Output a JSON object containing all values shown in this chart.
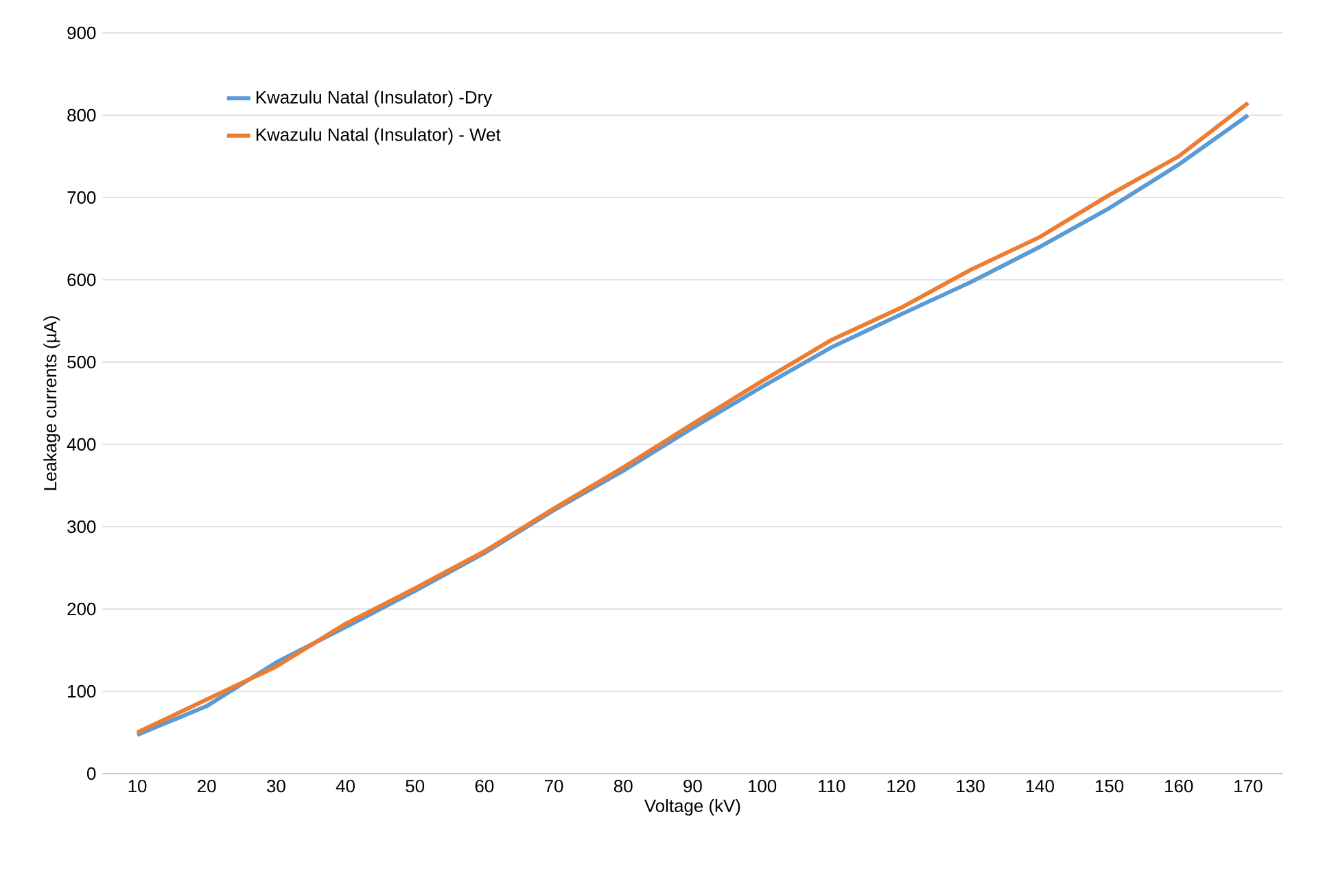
{
  "chart_data": {
    "type": "line",
    "xlabel": "Voltage (kV)",
    "ylabel": "Leakage currents (µA)",
    "categories": [
      "10",
      "20",
      "30",
      "40",
      "50",
      "60",
      "70",
      "80",
      "90",
      "100",
      "110",
      "120",
      "130",
      "140",
      "150",
      "160",
      "170"
    ],
    "series": [
      {
        "name": "Kwazulu Natal (Insulator) -Dry",
        "color": "#5b9bd5",
        "values": [
          47,
          82,
          135,
          178,
          222,
          268,
          320,
          368,
          420,
          470,
          518,
          558,
          597,
          640,
          687,
          740,
          800
        ]
      },
      {
        "name": "Kwazulu Natal (Insulator) - Wet",
        "color": "#ed7d31",
        "values": [
          50,
          90,
          130,
          182,
          225,
          270,
          322,
          372,
          425,
          477,
          527,
          566,
          612,
          652,
          703,
          750,
          815
        ]
      }
    ],
    "ylim": [
      0,
      900
    ],
    "yticks": [
      0,
      100,
      200,
      300,
      400,
      500,
      600,
      700,
      800,
      900
    ],
    "grid": "y",
    "legend": "top left",
    "marker": "none",
    "line_style": "solid"
  }
}
